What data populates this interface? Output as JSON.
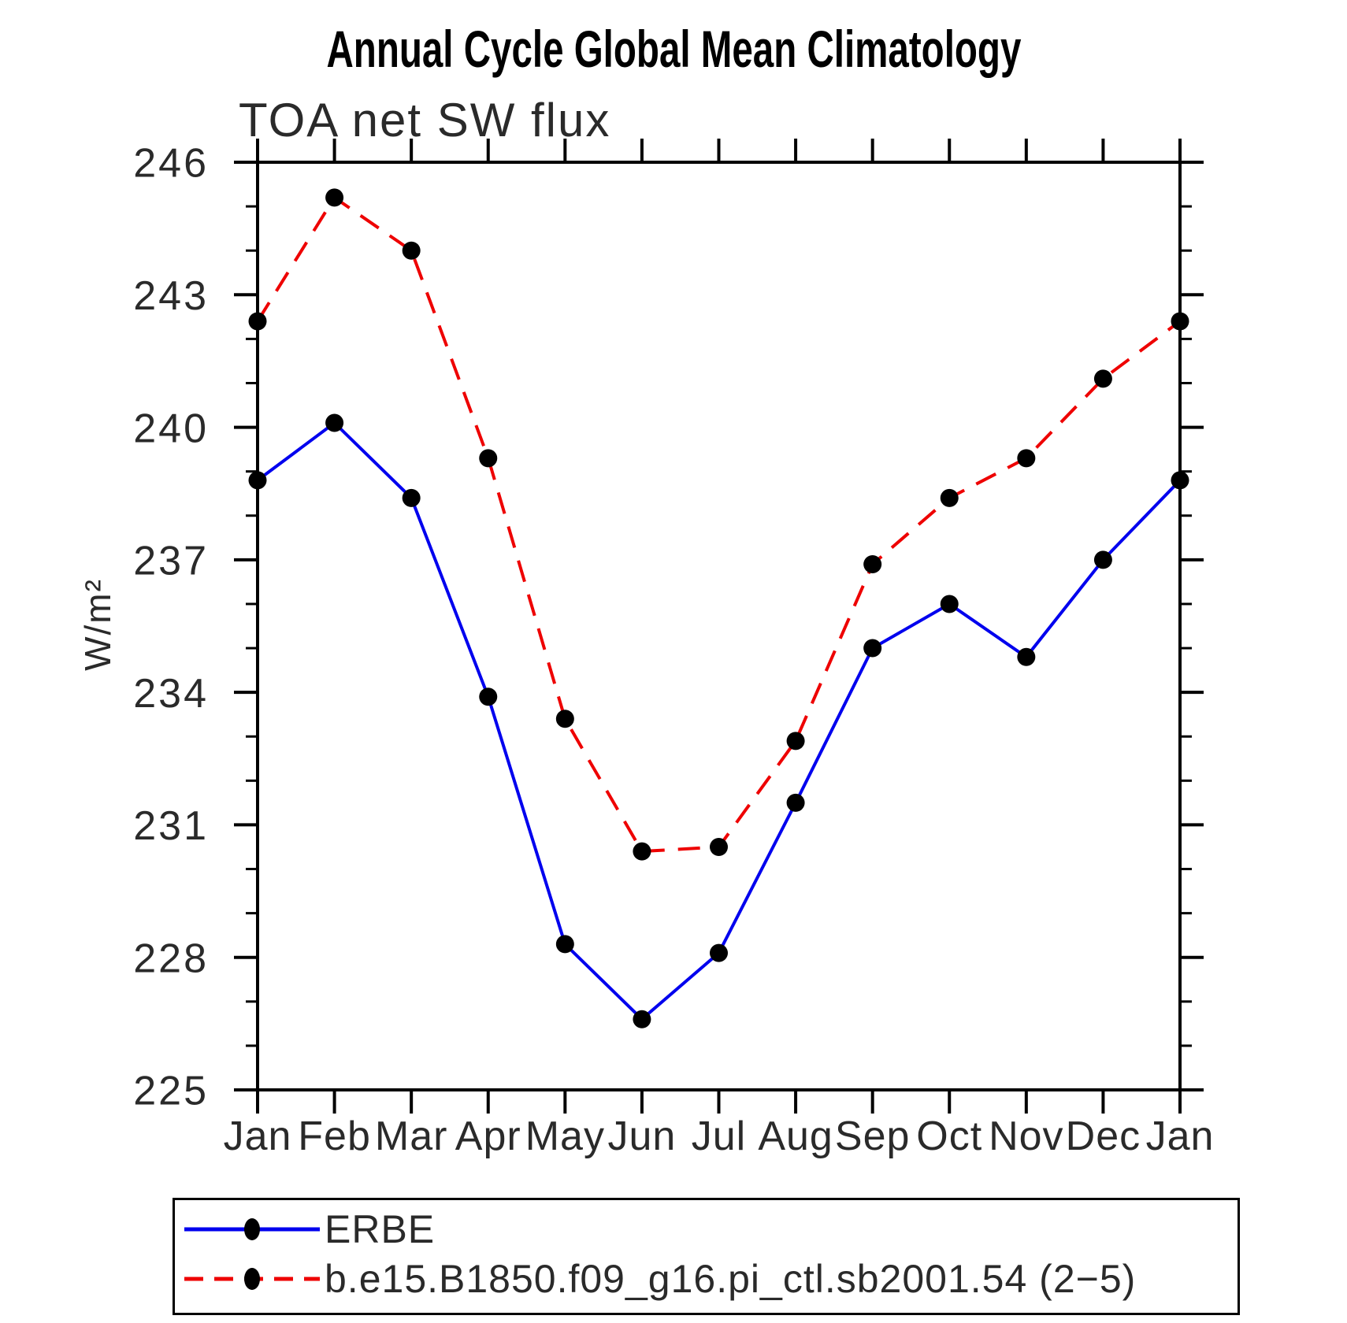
{
  "title": "Annual Cycle Global Mean Climatology",
  "chart_data": {
    "type": "line",
    "title": "Annual Cycle Global Mean Climatology",
    "subtitle": "TOA net SW flux",
    "xlabel": "",
    "ylabel": "W/m²",
    "ylim": [
      225,
      246
    ],
    "y_major_ticks": [
      246,
      243,
      240,
      237,
      234,
      231,
      228,
      225
    ],
    "y_minor_step": 1,
    "grid": false,
    "legend_position": "bottom",
    "categories": [
      "Jan",
      "Feb",
      "Mar",
      "Apr",
      "May",
      "Jun",
      "Jul",
      "Aug",
      "Sep",
      "Oct",
      "Nov",
      "Dec",
      "Jan"
    ],
    "series": [
      {
        "name": "ERBE",
        "color": "#0000ee",
        "line_style": "solid",
        "marker": "filled-black-circle",
        "values": [
          238.8,
          240.1,
          238.4,
          233.9,
          228.3,
          226.6,
          228.1,
          231.5,
          235.0,
          236.0,
          234.8,
          237.0,
          238.8
        ]
      },
      {
        "name": "b.e15.B1850.f09_g16.pi_ctl.sb2001.54 (2−5)",
        "color": "#ee0000",
        "line_style": "dashed",
        "marker": "filled-black-circle",
        "values": [
          242.4,
          245.2,
          244.0,
          239.3,
          233.4,
          230.4,
          230.5,
          232.9,
          236.9,
          238.4,
          239.3,
          241.1,
          242.4
        ]
      }
    ],
    "axis_color": "#000000",
    "units": "W/m²"
  }
}
